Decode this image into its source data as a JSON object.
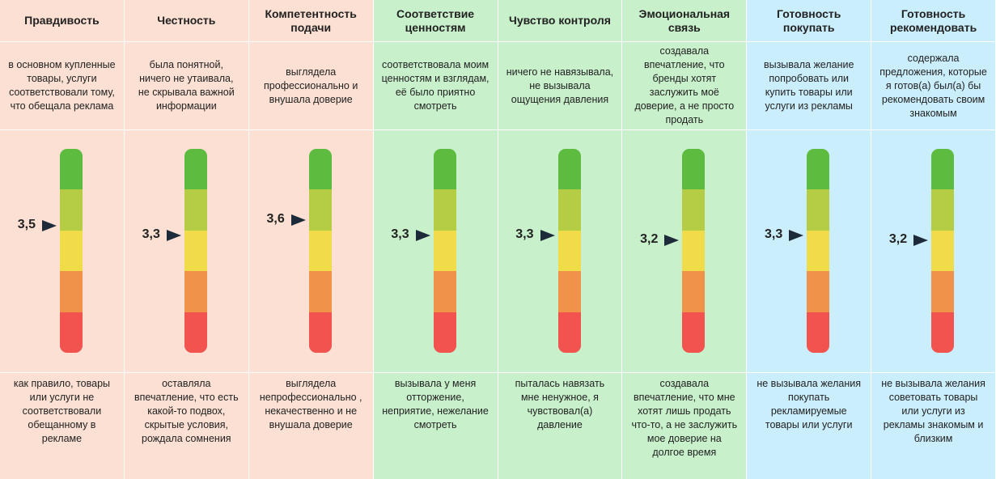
{
  "colors": {
    "group_honesty": "#fbe0d3",
    "group_values": "#c8f0cb",
    "group_action": "#cbeefc",
    "scale_top_to_bottom": [
      "#5dbb3f",
      "#b5cc45",
      "#f0dc48",
      "#f0924a",
      "#f2534e"
    ],
    "arrow": "#1d2a3a"
  },
  "chart_data": {
    "type": "gauge",
    "scale": [
      1,
      5
    ],
    "categories": [
      {
        "name": "Правдивость",
        "value": 3.5,
        "value_label": "3,5",
        "group": "group_honesty",
        "high": "в основном купленные товары, услуги соответствовали тому, что обещала реклама",
        "low": "как правило, товары или услуги не соответствовали обещанному в рекламе"
      },
      {
        "name": "Честность",
        "value": 3.3,
        "value_label": "3,3",
        "group": "group_honesty",
        "high": "была понятной, ничего не утаивала, не скрывала важной информации",
        "low": "оставляла впечатление, что есть какой-то подвох, скрытые условия, рождала сомнения"
      },
      {
        "name": "Компетентность подачи",
        "value": 3.6,
        "value_label": "3,6",
        "group": "group_honesty",
        "high": "выглядела профессионально и внушала доверие",
        "low": "выглядела непрофессионально , некачественно и не внушала доверие"
      },
      {
        "name": "Соответствие ценностям",
        "value": 3.3,
        "value_label": "3,3",
        "group": "group_values",
        "high": "соответствовала моим ценностям и взглядам, её было приятно смотреть",
        "low": "вызывала у меня отторжение, неприятие, нежелание смотреть"
      },
      {
        "name": "Чувство контроля",
        "value": 3.3,
        "value_label": "3,3",
        "group": "group_values",
        "high": "ничего не навязывала, не вызывала ощущения давления",
        "low": "пыталась навязать мне ненужное, я чувствовал(а) давление"
      },
      {
        "name": "Эмоциональная связь",
        "value": 3.2,
        "value_label": "3,2",
        "group": "group_values",
        "high": "создавала впечатление, что бренды хотят заслужить моё доверие, а не просто продать",
        "low": "создавала впечатление, что мне хотят лишь продать что-то, а не заслужить мое доверие на долгое время"
      },
      {
        "name": "Готовность покупать",
        "value": 3.3,
        "value_label": "3,3",
        "group": "group_action",
        "high": "вызывала желание попробовать или купить товары или услуги из рекламы",
        "low": "не вызывала желания покупать рекламируемые товары или услуги"
      },
      {
        "name": "Готовность рекомендовать",
        "value": 3.2,
        "value_label": "3,2",
        "group": "group_action",
        "high": "содержала предложения, которые я готов(а) был(а) бы рекомендовать своим знакомым",
        "low": "не вызывала желания советовать товары или услуги из рекламы знакомым и близким"
      }
    ]
  }
}
